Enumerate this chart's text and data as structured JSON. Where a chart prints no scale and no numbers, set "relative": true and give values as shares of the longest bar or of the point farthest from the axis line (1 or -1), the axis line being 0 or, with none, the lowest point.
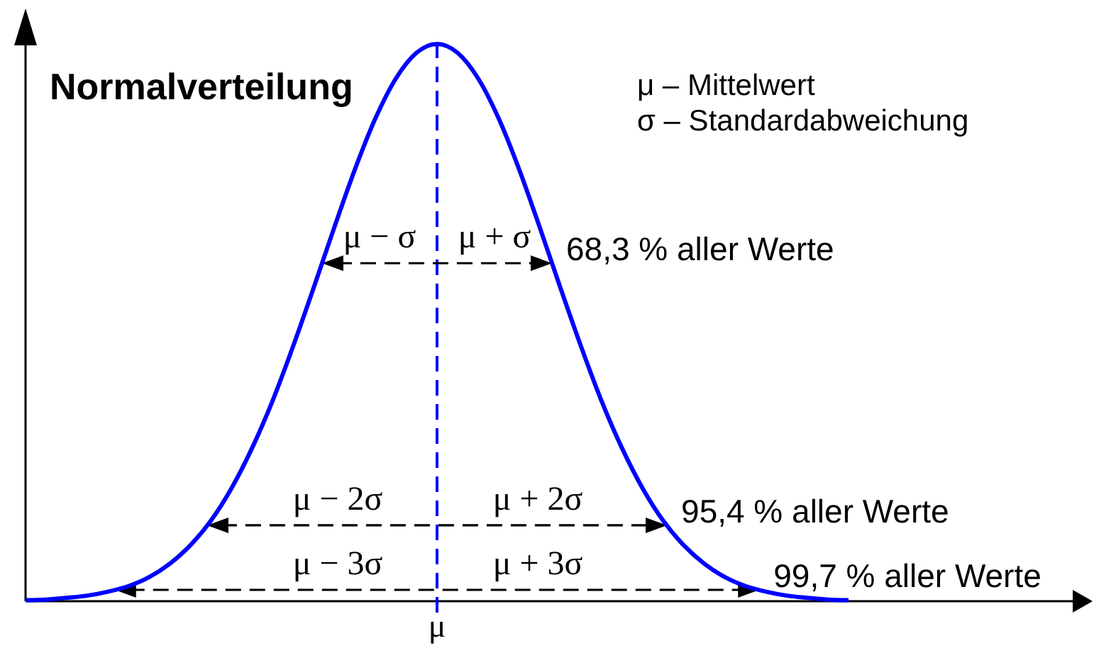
{
  "chart_data": {
    "type": "line",
    "title": "Normalverteilung",
    "relative": true,
    "categories": [
      null,
      null,
      null,
      null,
      null,
      null,
      null,
      null,
      null,
      null,
      null,
      null,
      null,
      null,
      null,
      null,
      null,
      null,
      null,
      null,
      null,
      null,
      null,
      null,
      null,
      null,
      null,
      null,
      null,
      null,
      null,
      null,
      null,
      null,
      null,
      null,
      null,
      null,
      null,
      null,
      null
    ],
    "series": [
      {
        "color": "#0000ff",
        "values": [
          0.002,
          0.003,
          0.006,
          0.01,
          0.017,
          0.027,
          0.043,
          0.067,
          0.1,
          0.144,
          0.202,
          0.274,
          0.359,
          0.457,
          0.562,
          0.67,
          0.774,
          0.866,
          0.938,
          0.984,
          1,
          0.984,
          0.938,
          0.866,
          0.774,
          0.67,
          0.562,
          0.457,
          0.359,
          0.274,
          0.202,
          0.144,
          0.1,
          0.067,
          0.043,
          0.027,
          0.017,
          0.01,
          0.006,
          0.003,
          0.002
        ]
      }
    ],
    "ref_lines": [
      {
        "axis": "x",
        "value": "μ",
        "color": "#0000ff",
        "line_style": "dashed"
      }
    ],
    "annotations": [
      "μ – Mittelwert",
      "σ – Standardabweichung",
      "μ − σ",
      "μ + σ",
      "68,3 % aller Werte",
      "μ − 2σ",
      "μ + 2σ",
      "95,4 % aller Werte",
      "μ − 3σ",
      "μ + 3σ",
      "99,7 % aller Werte"
    ]
  }
}
